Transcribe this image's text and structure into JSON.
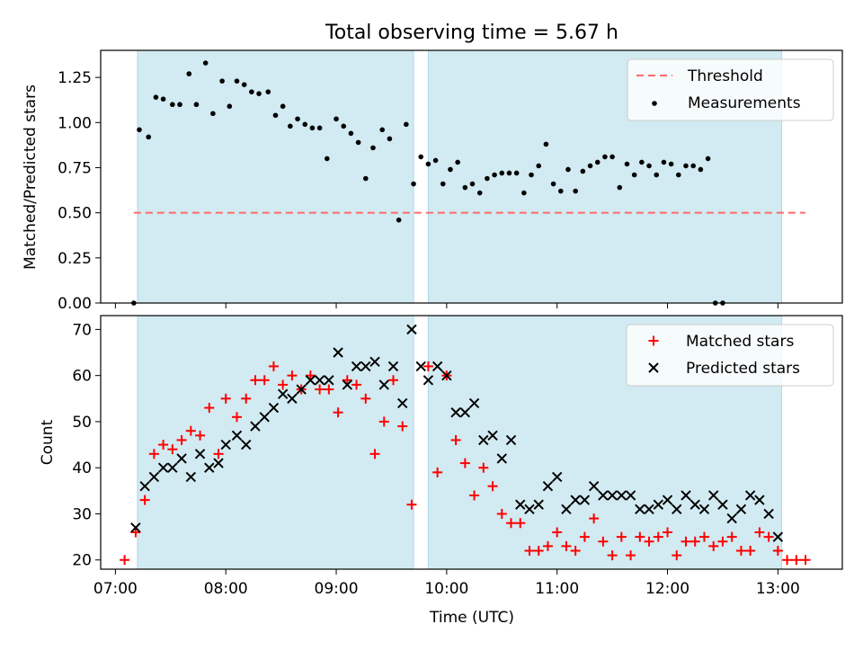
{
  "title": "Total observing time = 5.67 h",
  "colors": {
    "shade": "#add8e6",
    "threshold": "#ff6b6b",
    "measurements": "#000000",
    "matched": "#ff0000",
    "predicted": "#000000"
  },
  "chart_data": [
    {
      "type": "scatter",
      "panel": "top",
      "ylabel": "Matched/Predicted stars",
      "xlabel": "",
      "ylim": [
        0,
        1.4
      ],
      "yticks": [
        0.0,
        0.25,
        0.5,
        0.75,
        1.0,
        1.25
      ],
      "ytick_labels": [
        "0.00",
        "0.25",
        "0.50",
        "0.75",
        "1.00",
        "1.25"
      ],
      "xlim": [
        "06:52",
        "13:35"
      ],
      "legend": {
        "placement": "top-right",
        "entries": [
          "Threshold",
          "Measurements"
        ]
      },
      "shaded_intervals": [
        [
          "07:12",
          "09:42"
        ],
        [
          "09:50",
          "13:02"
        ]
      ],
      "threshold": {
        "name": "Threshold",
        "y": 0.5,
        "x": [
          "07:10",
          "13:15"
        ]
      },
      "series": [
        {
          "name": "Measurements",
          "points": [
            [
              "07:10",
              0.0
            ],
            [
              "07:13",
              0.96
            ],
            [
              "07:18",
              0.92
            ],
            [
              "07:22",
              1.14
            ],
            [
              "07:26",
              1.13
            ],
            [
              "07:31",
              1.1
            ],
            [
              "07:35",
              1.1
            ],
            [
              "07:40",
              1.27
            ],
            [
              "07:44",
              1.1
            ],
            [
              "07:49",
              1.33
            ],
            [
              "07:53",
              1.05
            ],
            [
              "07:58",
              1.23
            ],
            [
              "08:02",
              1.09
            ],
            [
              "08:06",
              1.23
            ],
            [
              "08:10",
              1.21
            ],
            [
              "08:14",
              1.17
            ],
            [
              "08:18",
              1.16
            ],
            [
              "08:23",
              1.17
            ],
            [
              "08:27",
              1.04
            ],
            [
              "08:31",
              1.09
            ],
            [
              "08:35",
              0.98
            ],
            [
              "08:39",
              1.02
            ],
            [
              "08:43",
              0.99
            ],
            [
              "08:47",
              0.97
            ],
            [
              "08:51",
              0.97
            ],
            [
              "08:55",
              0.8
            ],
            [
              "09:00",
              1.02
            ],
            [
              "09:04",
              0.98
            ],
            [
              "09:08",
              0.94
            ],
            [
              "09:12",
              0.89
            ],
            [
              "09:16",
              0.69
            ],
            [
              "09:20",
              0.86
            ],
            [
              "09:25",
              0.96
            ],
            [
              "09:29",
              0.91
            ],
            [
              "09:34",
              0.46
            ],
            [
              "09:38",
              0.99
            ],
            [
              "09:42",
              0.66
            ],
            [
              "09:46",
              0.81
            ],
            [
              "09:50",
              0.77
            ],
            [
              "09:54",
              0.79
            ],
            [
              "09:58",
              0.66
            ],
            [
              "10:02",
              0.74
            ],
            [
              "10:06",
              0.78
            ],
            [
              "10:10",
              0.64
            ],
            [
              "10:14",
              0.66
            ],
            [
              "10:18",
              0.61
            ],
            [
              "10:22",
              0.69
            ],
            [
              "10:26",
              0.71
            ],
            [
              "10:30",
              0.72
            ],
            [
              "10:34",
              0.72
            ],
            [
              "10:38",
              0.72
            ],
            [
              "10:42",
              0.61
            ],
            [
              "10:46",
              0.71
            ],
            [
              "10:50",
              0.76
            ],
            [
              "10:54",
              0.88
            ],
            [
              "10:58",
              0.66
            ],
            [
              "11:02",
              0.62
            ],
            [
              "11:06",
              0.74
            ],
            [
              "11:10",
              0.62
            ],
            [
              "11:14",
              0.73
            ],
            [
              "11:18",
              0.76
            ],
            [
              "11:22",
              0.78
            ],
            [
              "11:26",
              0.81
            ],
            [
              "11:30",
              0.81
            ],
            [
              "11:34",
              0.64
            ],
            [
              "11:38",
              0.77
            ],
            [
              "11:42",
              0.71
            ],
            [
              "11:46",
              0.78
            ],
            [
              "11:50",
              0.76
            ],
            [
              "11:54",
              0.71
            ],
            [
              "11:58",
              0.78
            ],
            [
              "12:02",
              0.77
            ],
            [
              "12:06",
              0.71
            ],
            [
              "12:10",
              0.76
            ],
            [
              "12:14",
              0.76
            ],
            [
              "12:18",
              0.74
            ],
            [
              "12:22",
              0.8
            ],
            [
              "12:26",
              0.0
            ],
            [
              "12:30",
              0.0
            ]
          ]
        }
      ]
    },
    {
      "type": "scatter",
      "panel": "bottom",
      "ylabel": "Count",
      "xlabel": "Time (UTC)",
      "ylim": [
        18,
        73
      ],
      "yticks": [
        20,
        30,
        40,
        50,
        60,
        70
      ],
      "ytick_labels": [
        "20",
        "30",
        "40",
        "50",
        "60",
        "70"
      ],
      "xlim": [
        "06:52",
        "13:35"
      ],
      "xticks": [
        "07:00",
        "08:00",
        "09:00",
        "10:00",
        "11:00",
        "12:00",
        "13:00"
      ],
      "xtick_labels": [
        "07:00",
        "08:00",
        "09:00",
        "10:00",
        "11:00",
        "12:00",
        "13:00"
      ],
      "legend": {
        "placement": "top-right",
        "entries": [
          "Matched stars",
          "Predicted stars"
        ]
      },
      "shaded_intervals": [
        [
          "07:12",
          "09:42"
        ],
        [
          "09:50",
          "13:02"
        ]
      ],
      "series": [
        {
          "name": "Matched stars",
          "marker": "plus",
          "points": [
            [
              "07:05",
              20
            ],
            [
              "07:11",
              26
            ],
            [
              "07:16",
              33
            ],
            [
              "07:21",
              43
            ],
            [
              "07:26",
              45
            ],
            [
              "07:31",
              44
            ],
            [
              "07:36",
              46
            ],
            [
              "07:41",
              48
            ],
            [
              "07:46",
              47
            ],
            [
              "07:51",
              53
            ],
            [
              "07:56",
              43
            ],
            [
              "08:00",
              55
            ],
            [
              "08:06",
              51
            ],
            [
              "08:11",
              55
            ],
            [
              "08:16",
              59
            ],
            [
              "08:21",
              59
            ],
            [
              "08:26",
              62
            ],
            [
              "08:31",
              58
            ],
            [
              "08:36",
              60
            ],
            [
              "08:41",
              57
            ],
            [
              "08:46",
              60
            ],
            [
              "08:51",
              57
            ],
            [
              "08:56",
              57
            ],
            [
              "09:01",
              52
            ],
            [
              "09:06",
              59
            ],
            [
              "09:11",
              58
            ],
            [
              "09:16",
              55
            ],
            [
              "09:21",
              43
            ],
            [
              "09:26",
              50
            ],
            [
              "09:31",
              59
            ],
            [
              "09:36",
              49
            ],
            [
              "09:41",
              32
            ],
            [
              "09:50",
              62
            ],
            [
              "09:55",
              39
            ],
            [
              "10:00",
              60
            ],
            [
              "10:05",
              46
            ],
            [
              "10:10",
              41
            ],
            [
              "10:15",
              34
            ],
            [
              "10:20",
              40
            ],
            [
              "10:25",
              36
            ],
            [
              "10:30",
              30
            ],
            [
              "10:35",
              28
            ],
            [
              "10:40",
              28
            ],
            [
              "10:45",
              22
            ],
            [
              "10:50",
              22
            ],
            [
              "10:55",
              23
            ],
            [
              "11:00",
              26
            ],
            [
              "11:05",
              23
            ],
            [
              "11:10",
              22
            ],
            [
              "11:15",
              25
            ],
            [
              "11:20",
              29
            ],
            [
              "11:25",
              24
            ],
            [
              "11:30",
              21
            ],
            [
              "11:35",
              25
            ],
            [
              "11:40",
              21
            ],
            [
              "11:45",
              25
            ],
            [
              "11:50",
              24
            ],
            [
              "11:55",
              25
            ],
            [
              "12:00",
              26
            ],
            [
              "12:05",
              21
            ],
            [
              "12:10",
              24
            ],
            [
              "12:15",
              24
            ],
            [
              "12:20",
              25
            ],
            [
              "12:25",
              23
            ],
            [
              "12:30",
              24
            ],
            [
              "12:35",
              25
            ],
            [
              "12:40",
              22
            ],
            [
              "12:45",
              22
            ],
            [
              "12:50",
              26
            ],
            [
              "12:55",
              25
            ],
            [
              "13:00",
              22
            ],
            [
              "13:05",
              20
            ],
            [
              "13:10",
              20
            ],
            [
              "13:15",
              20
            ]
          ]
        },
        {
          "name": "Predicted stars",
          "marker": "x",
          "points": [
            [
              "07:11",
              27
            ],
            [
              "07:16",
              36
            ],
            [
              "07:21",
              38
            ],
            [
              "07:26",
              40
            ],
            [
              "07:31",
              40
            ],
            [
              "07:36",
              42
            ],
            [
              "07:41",
              38
            ],
            [
              "07:46",
              43
            ],
            [
              "07:51",
              40
            ],
            [
              "07:56",
              41
            ],
            [
              "08:00",
              45
            ],
            [
              "08:06",
              47
            ],
            [
              "08:11",
              45
            ],
            [
              "08:16",
              49
            ],
            [
              "08:21",
              51
            ],
            [
              "08:26",
              53
            ],
            [
              "08:31",
              56
            ],
            [
              "08:36",
              55
            ],
            [
              "08:41",
              57
            ],
            [
              "08:46",
              59
            ],
            [
              "08:51",
              59
            ],
            [
              "08:56",
              59
            ],
            [
              "09:01",
              65
            ],
            [
              "09:06",
              58
            ],
            [
              "09:11",
              62
            ],
            [
              "09:16",
              62
            ],
            [
              "09:21",
              63
            ],
            [
              "09:26",
              58
            ],
            [
              "09:31",
              62
            ],
            [
              "09:36",
              54
            ],
            [
              "09:41",
              70
            ],
            [
              "09:46",
              62
            ],
            [
              "09:50",
              59
            ],
            [
              "09:55",
              62
            ],
            [
              "10:00",
              60
            ],
            [
              "10:05",
              52
            ],
            [
              "10:10",
              52
            ],
            [
              "10:15",
              54
            ],
            [
              "10:20",
              46
            ],
            [
              "10:25",
              47
            ],
            [
              "10:30",
              42
            ],
            [
              "10:35",
              46
            ],
            [
              "10:40",
              32
            ],
            [
              "10:45",
              31
            ],
            [
              "10:50",
              32
            ],
            [
              "10:55",
              36
            ],
            [
              "11:00",
              38
            ],
            [
              "11:05",
              31
            ],
            [
              "11:10",
              33
            ],
            [
              "11:15",
              33
            ],
            [
              "11:20",
              36
            ],
            [
              "11:25",
              34
            ],
            [
              "11:30",
              34
            ],
            [
              "11:35",
              34
            ],
            [
              "11:40",
              34
            ],
            [
              "11:45",
              31
            ],
            [
              "11:50",
              31
            ],
            [
              "11:55",
              32
            ],
            [
              "12:00",
              33
            ],
            [
              "12:05",
              31
            ],
            [
              "12:10",
              34
            ],
            [
              "12:15",
              32
            ],
            [
              "12:20",
              31
            ],
            [
              "12:25",
              34
            ],
            [
              "12:30",
              32
            ],
            [
              "12:35",
              29
            ],
            [
              "12:40",
              31
            ],
            [
              "12:45",
              34
            ],
            [
              "12:50",
              33
            ],
            [
              "12:55",
              30
            ],
            [
              "13:00",
              25
            ]
          ]
        }
      ]
    }
  ]
}
